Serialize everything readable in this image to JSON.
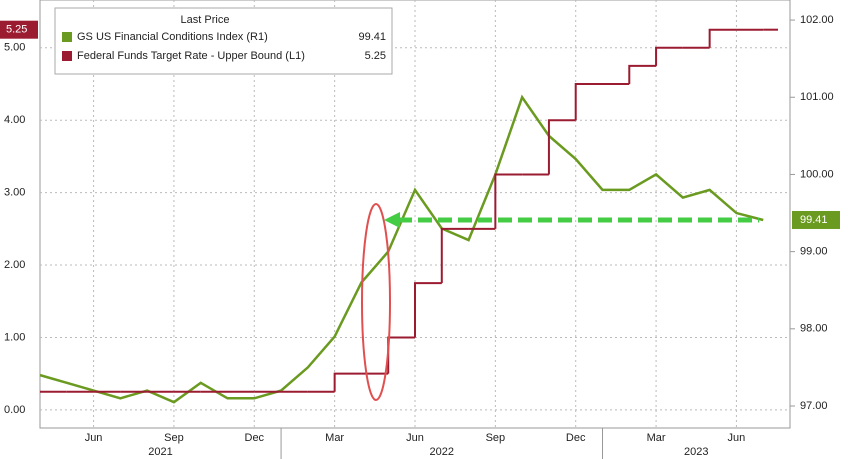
{
  "chart_data": {
    "type": "line",
    "legend_title": "Last Price",
    "x": [
      "2021-04",
      "2021-05",
      "2021-06",
      "2021-07",
      "2021-08",
      "2021-09",
      "2021-10",
      "2021-11",
      "2021-12",
      "2022-01",
      "2022-02",
      "2022-03",
      "2022-04",
      "2022-05",
      "2022-06",
      "2022-07",
      "2022-08",
      "2022-09",
      "2022-10",
      "2022-11",
      "2022-12",
      "2023-01",
      "2023-02",
      "2023-03",
      "2023-04",
      "2023-05",
      "2023-06",
      "2023-07"
    ],
    "xlim": [
      "2021-04",
      "2023-08"
    ],
    "xticks": [
      {
        "value": "2021-06",
        "label": "Jun"
      },
      {
        "value": "2021-09",
        "label": "Sep"
      },
      {
        "value": "2021-12",
        "label": "Dec"
      },
      {
        "value": "2022-03",
        "label": "Mar"
      },
      {
        "value": "2022-06",
        "label": "Jun"
      },
      {
        "value": "2022-09",
        "label": "Sep"
      },
      {
        "value": "2022-12",
        "label": "Dec"
      },
      {
        "value": "2023-03",
        "label": "Mar"
      },
      {
        "value": "2023-06",
        "label": "Jun"
      }
    ],
    "years": [
      "2021",
      "2022",
      "2023"
    ],
    "series": [
      {
        "name": "GS US Financial Conditions Index  (R1)",
        "color": "#6a9a1f",
        "axis": "y2",
        "values": [
          97.4,
          97.3,
          97.2,
          97.1,
          97.2,
          97.05,
          97.3,
          97.1,
          97.1,
          97.2,
          97.5,
          97.9,
          98.6,
          99.0,
          99.8,
          99.3,
          99.15,
          100.0,
          101.0,
          100.5,
          100.2,
          99.8,
          99.8,
          100.0,
          99.7,
          99.8,
          99.5,
          99.41
        ]
      },
      {
        "name": "Federal Funds Target Rate - Upper Bound  (L1)",
        "color": "#9b1b30",
        "step": true,
        "values": [
          0.25,
          0.25,
          0.25,
          0.25,
          0.25,
          0.25,
          0.25,
          0.25,
          0.25,
          0.25,
          0.25,
          0.5,
          0.5,
          1.0,
          1.75,
          2.5,
          2.5,
          3.25,
          3.25,
          4.0,
          4.5,
          4.5,
          4.75,
          5.0,
          5.0,
          5.25,
          5.25,
          5.25
        ]
      }
    ],
    "ylim": [
      -0.25,
      5.66
    ],
    "yticks": [
      {
        "value": 0,
        "label": "0.00"
      },
      {
        "value": 1,
        "label": "1.00"
      },
      {
        "value": 2,
        "label": "2.00"
      },
      {
        "value": 3,
        "label": "3.00"
      },
      {
        "value": 4,
        "label": "4.00"
      },
      {
        "value": 5,
        "label": "5.00"
      }
    ],
    "y2lim": [
      96.715,
      102.26
    ],
    "y2ticks": [
      {
        "value": 97,
        "label": "97.00"
      },
      {
        "value": 98,
        "label": "98.00"
      },
      {
        "value": 99,
        "label": "99.00"
      },
      {
        "value": 100,
        "label": "100.00"
      },
      {
        "value": 101,
        "label": "101.00"
      },
      {
        "value": 102,
        "label": "102.00"
      }
    ],
    "grid": true
  }
}
